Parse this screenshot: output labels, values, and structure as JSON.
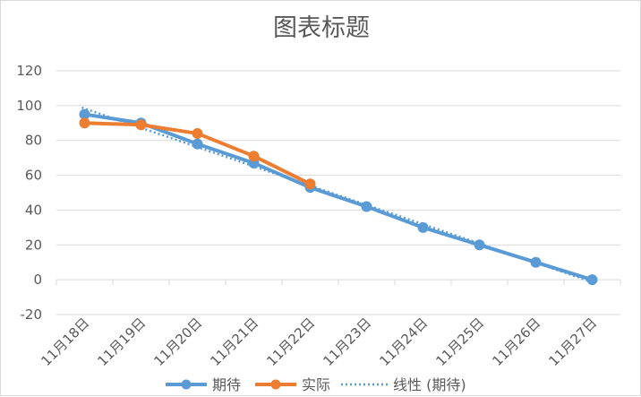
{
  "chart_data": {
    "type": "line",
    "title": "图表标题",
    "categories": [
      "11月18日",
      "11月19日",
      "11月20日",
      "11月21日",
      "11月22日",
      "11月23日",
      "11月24日",
      "11月25日",
      "11月26日",
      "11月27日"
    ],
    "ylim": [
      -20,
      120
    ],
    "yticks": [
      -20,
      0,
      20,
      40,
      60,
      80,
      100,
      120
    ],
    "grid": true,
    "legend_position": "bottom",
    "series": [
      {
        "name": "期待",
        "color": "#5b9bd5",
        "style": "solid",
        "values": [
          95,
          90,
          78,
          67,
          53,
          42,
          30,
          20,
          10,
          0
        ]
      },
      {
        "name": "实际",
        "color": "#ed7d31",
        "style": "solid",
        "values": [
          90,
          89,
          84,
          71,
          55,
          null,
          null,
          null,
          null,
          null
        ]
      },
      {
        "name": "线性 (期待)",
        "color": "#5b9bd5",
        "style": "dotted",
        "trendline_of": "期待"
      }
    ]
  }
}
